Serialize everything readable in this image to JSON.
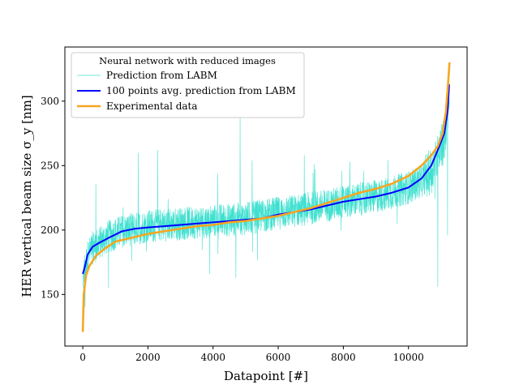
{
  "chart_data": {
    "type": "line",
    "xlabel": "Datapoint [#]",
    "ylabel": "HER vertical beam size σ_y [nm]",
    "xlim": [
      -550,
      11800
    ],
    "ylim": [
      110,
      342
    ],
    "xticks": [
      0,
      2000,
      4000,
      6000,
      8000,
      10000
    ],
    "yticks": [
      150,
      200,
      250,
      300
    ],
    "legend": {
      "placement": "top-left",
      "title": "Neural network with reduced images"
    },
    "series": [
      {
        "name": "Prediction from LABM",
        "color": "#40E0D0",
        "style": "noisy-thin",
        "x": [
          0,
          50,
          150,
          300,
          500,
          800,
          1200,
          1600,
          2000,
          2500,
          3000,
          3500,
          4000,
          4500,
          5000,
          5500,
          6000,
          6500,
          7000,
          7500,
          8000,
          8500,
          9000,
          9500,
          10000,
          10400,
          10700,
          10900,
          11100,
          11200,
          11250
        ],
        "y": [
          162,
          168,
          180,
          186,
          190,
          195,
          199,
          201,
          203,
          204,
          205,
          206,
          207,
          208,
          209,
          211,
          213,
          215,
          217,
          219,
          222,
          224,
          226,
          229,
          233,
          238,
          246,
          256,
          270,
          290,
          313
        ],
        "noise_amplitude": 13,
        "spikes": [
          {
            "x": 4830,
            "y": 287
          },
          {
            "x": 2300,
            "y": 262
          },
          {
            "x": 1700,
            "y": 260
          },
          {
            "x": 6800,
            "y": 258
          },
          {
            "x": 5200,
            "y": 254
          },
          {
            "x": 400,
            "y": 236
          },
          {
            "x": 4700,
            "y": 163
          },
          {
            "x": 3900,
            "y": 166
          },
          {
            "x": 1500,
            "y": 176
          },
          {
            "x": 7950,
            "y": 246
          },
          {
            "x": 8200,
            "y": 253
          },
          {
            "x": 10900,
            "y": 156
          },
          {
            "x": 11200,
            "y": 196
          },
          {
            "x": 70,
            "y": 140
          }
        ]
      },
      {
        "name": "100 points avg. prediction from LABM",
        "color": "#0000FF",
        "style": "line",
        "x": [
          0,
          50,
          150,
          300,
          500,
          800,
          1200,
          1600,
          2000,
          2500,
          3000,
          3500,
          4000,
          4500,
          5000,
          5500,
          6000,
          6500,
          7000,
          7500,
          8000,
          8500,
          9000,
          9500,
          10000,
          10400,
          10700,
          10900,
          11100,
          11200,
          11250
        ],
        "y": [
          166,
          170,
          181,
          187,
          190,
          194,
          199,
          201,
          202,
          203,
          204,
          205,
          206,
          207,
          208,
          209,
          212,
          214,
          216,
          219,
          222,
          224,
          226,
          229,
          233,
          240,
          250,
          262,
          275,
          292,
          313
        ]
      },
      {
        "name": "Experimental data",
        "color": "#F5A623",
        "style": "line",
        "x": [
          0,
          30,
          100,
          200,
          400,
          700,
          1000,
          1500,
          2000,
          2500,
          3000,
          3500,
          4000,
          4500,
          5000,
          5500,
          6000,
          6500,
          7000,
          7500,
          8000,
          8500,
          9000,
          9500,
          10000,
          10400,
          10700,
          10900,
          11050,
          11150,
          11220,
          11260
        ],
        "y": [
          121,
          150,
          165,
          172,
          180,
          186,
          191,
          194,
          197,
          199,
          201,
          203,
          204,
          206,
          207,
          209,
          211,
          214,
          217,
          221,
          225,
          229,
          232,
          236,
          242,
          250,
          258,
          265,
          275,
          292,
          315,
          330
        ]
      }
    ]
  }
}
